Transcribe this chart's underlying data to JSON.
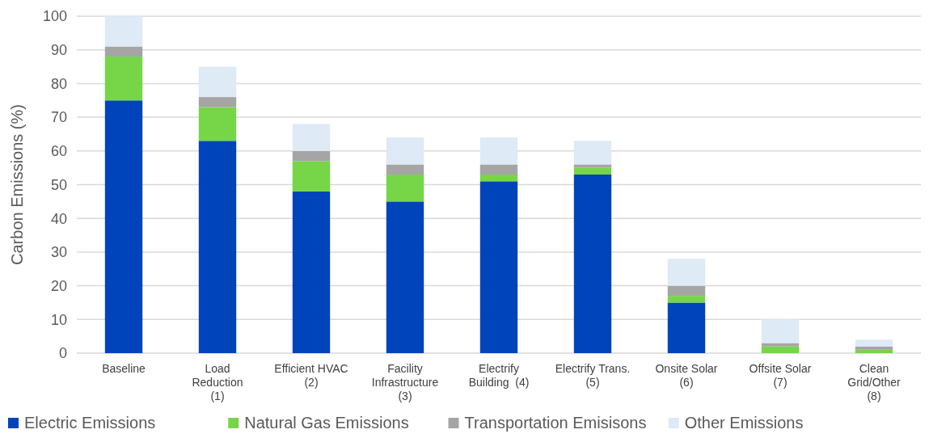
{
  "chart_data": {
    "type": "bar",
    "stacked": true,
    "ylabel": "Carbon Emissions (%)",
    "categories": [
      "Baseline",
      "Load\nReduction\n(1)",
      "Efficient HVAC\n(2)",
      "Facility\nInfrastructure\n(3)",
      "Electrify\nBuilding  (4)",
      "Electrify Trans.\n(5)",
      "Onsite Solar\n(6)",
      "Offsite Solar\n(7)",
      "Clean\nGrid/Other\n(8)"
    ],
    "series": [
      {
        "name": "Electric Emissions",
        "color": "#0044bb",
        "values": [
          75,
          63,
          48,
          45,
          51,
          53,
          15,
          0,
          0
        ]
      },
      {
        "name": "Natural Gas Emissions",
        "color": "#77d548",
        "values": [
          13,
          10,
          9,
          8,
          2,
          2,
          2,
          2,
          1
        ]
      },
      {
        "name": "Transportation Emisisons",
        "color": "#a5a5a5",
        "values": [
          3,
          3,
          3,
          3,
          3,
          1,
          3,
          1,
          1
        ]
      },
      {
        "name": "Other Emissions",
        "color": "#deeaf6",
        "values": [
          9,
          9,
          8,
          8,
          8,
          7,
          8,
          7,
          2
        ]
      }
    ],
    "ylim": [
      0,
      100
    ],
    "yticks": [
      0,
      10,
      20,
      30,
      40,
      50,
      60,
      70,
      80,
      90,
      100
    ],
    "grid": "y",
    "legend": "bottom"
  }
}
